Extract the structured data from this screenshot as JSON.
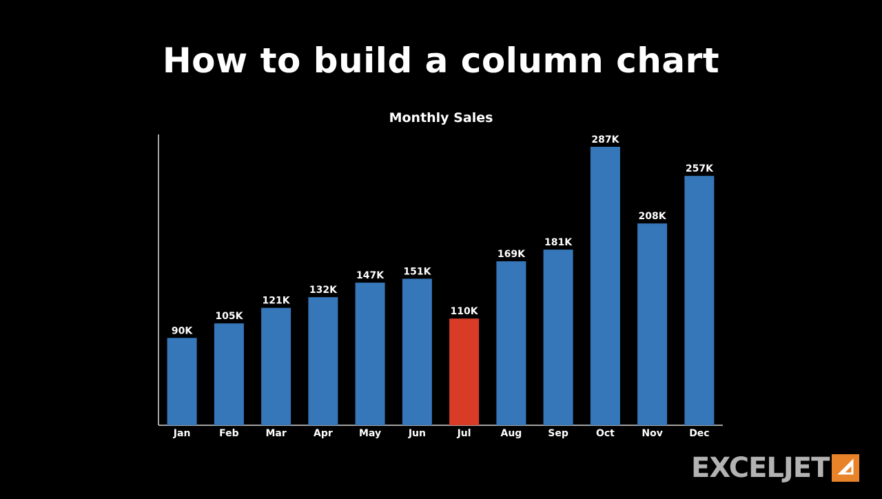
{
  "page": {
    "title": "How to build a column chart"
  },
  "brand": {
    "name": "EXCELJET",
    "icon": "exceljet-arrow-icon",
    "icon_color": "#e8832a",
    "text_color": "#b3b3b3"
  },
  "chart_data": {
    "type": "bar",
    "title": "Monthly Sales",
    "xlabel": "",
    "ylabel": "",
    "categories": [
      "Jan",
      "Feb",
      "Mar",
      "Apr",
      "May",
      "Jun",
      "Jul",
      "Aug",
      "Sep",
      "Oct",
      "Nov",
      "Dec"
    ],
    "values": [
      90,
      105,
      121,
      132,
      147,
      151,
      110,
      169,
      181,
      287,
      208,
      257
    ],
    "data_labels": [
      "90K",
      "105K",
      "121K",
      "132K",
      "147K",
      "151K",
      "110K",
      "169K",
      "181K",
      "287K",
      "208K",
      "257K"
    ],
    "ylim": [
      0,
      300
    ],
    "grid": false,
    "legend": "none",
    "bar_color": "#3677ba",
    "highlight": {
      "category": "Jul",
      "color": "#d93c26"
    }
  }
}
